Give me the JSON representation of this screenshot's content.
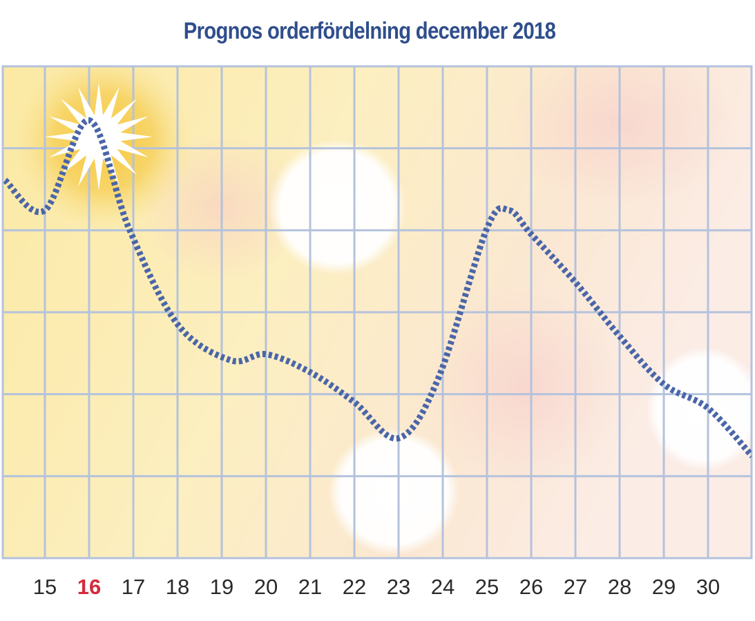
{
  "chart_data": {
    "type": "line",
    "title": "Prognos orderfördelning december 2018",
    "xlabel": "",
    "ylabel": "",
    "categories": [
      "15",
      "16",
      "17",
      "18",
      "19",
      "20",
      "21",
      "22",
      "23",
      "24",
      "25",
      "26",
      "27",
      "28",
      "29",
      "30"
    ],
    "highlight_category": "16",
    "x": [
      14.1,
      15,
      16,
      16.9,
      18,
      19.2,
      20,
      21,
      22,
      23,
      23.9,
      25,
      25.5,
      26,
      27,
      28,
      29,
      30,
      31
    ],
    "values": [
      4.1,
      3.6,
      5.1,
      3.3,
      1.7,
      1.1,
      1.2,
      0.9,
      0.4,
      -0.2,
      0.8,
      3.3,
      3.6,
      3.2,
      2.4,
      1.5,
      0.7,
      0.3,
      -0.5
    ],
    "ylim": [
      -2.2,
      6
    ],
    "grid": true,
    "series_color": "#4a66a8",
    "grid_color": "#b4c2dc",
    "highlight_color": "#d42a3c"
  }
}
